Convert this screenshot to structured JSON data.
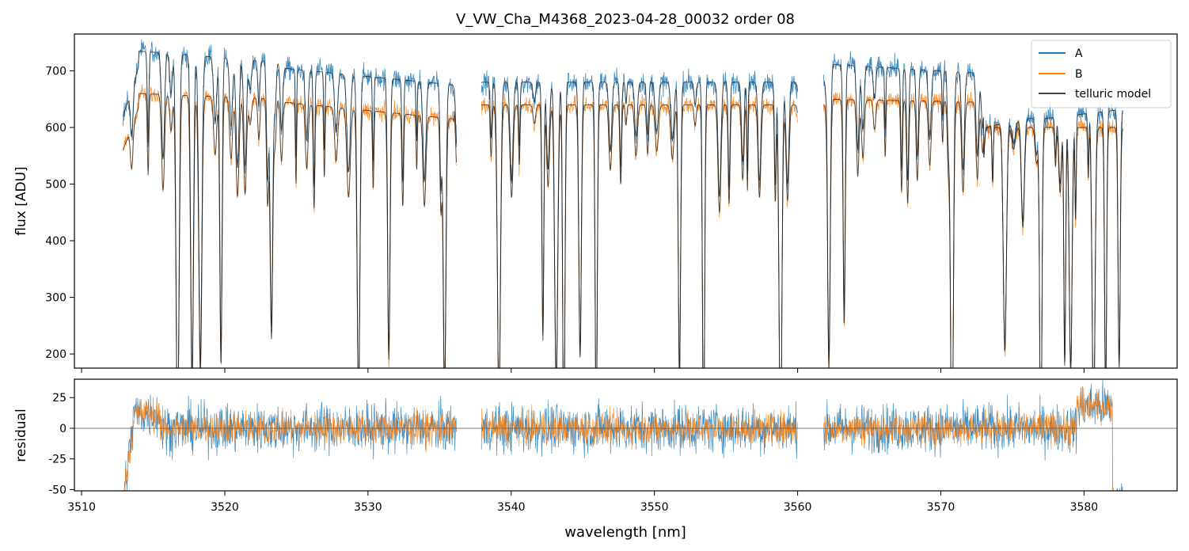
{
  "chart_data": [
    {
      "type": "line",
      "title": "V_VW_Cha_M4368_2023-04-28_00032  order 08",
      "xlabel": "",
      "ylabel": "flux [ADU]",
      "xlim": [
        3509.5,
        3586.5
      ],
      "ylim": [
        175,
        765
      ],
      "yticks": [
        200,
        300,
        400,
        500,
        600,
        700
      ],
      "xticks": [
        3510,
        3520,
        3530,
        3540,
        3550,
        3560,
        3570,
        3580
      ],
      "xtick_labels_shown": false,
      "legend": {
        "placement": "top-right",
        "entries": [
          "A",
          "B",
          "telluric model"
        ]
      },
      "series": [
        {
          "name": "A",
          "color": "#1f77b4",
          "style": "noisy spectrum, continuum ~700-740 ADU on left, ~680 mid, ~715 right, dropping to ~600 near 3578 nm",
          "x_range": [
            3512.9,
            3582.7
          ]
        },
        {
          "name": "B",
          "color": "#ff7f0e",
          "style": "noisy spectrum, continuum ~630-660 ADU",
          "x_range": [
            3512.9,
            3582.7
          ]
        },
        {
          "name": "telluric model",
          "color": "#222222",
          "style": "smooth model tracing both spectra with deep absorption lines",
          "x_range": [
            3512.9,
            3582.7
          ]
        }
      ],
      "gaps_nm": [
        [
          3536.2,
          3537.9
        ],
        [
          3560.0,
          3561.8
        ]
      ]
    },
    {
      "type": "line",
      "title": "",
      "xlabel": "wavelength [nm]",
      "ylabel": "residual",
      "xlim": [
        3509.5,
        3586.5
      ],
      "ylim": [
        -51,
        40
      ],
      "yticks": [
        -50,
        -25,
        0,
        25
      ],
      "xticks": [
        3510,
        3520,
        3530,
        3540,
        3550,
        3560,
        3570,
        3580
      ],
      "reference_line": 0,
      "series": [
        {
          "name": "A",
          "color": "#1f77b4",
          "noise_amplitude": 18
        },
        {
          "name": "B",
          "color": "#ff7f0e",
          "noise_amplitude": 12
        }
      ]
    }
  ]
}
